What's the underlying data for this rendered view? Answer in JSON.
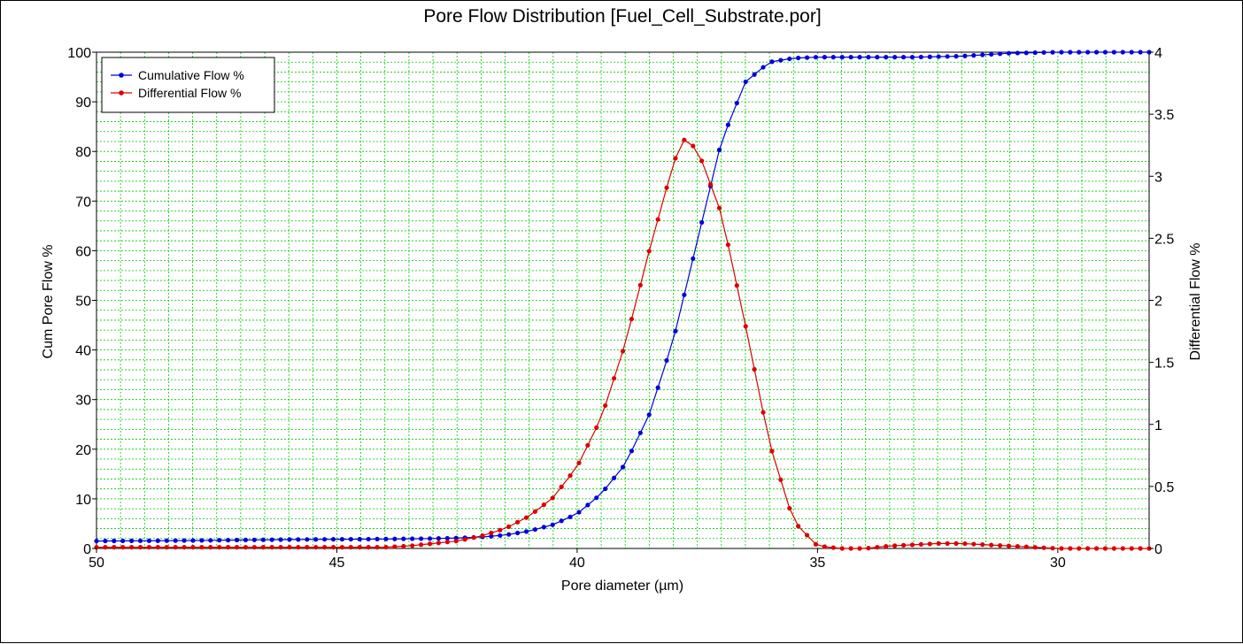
{
  "chart_data": {
    "type": "line",
    "title": "Pore Flow Distribution [Fuel_Cell_Substrate.por]",
    "xlabel": "Pore diameter (µm)",
    "ylabel_left": "Cum Pore Flow %",
    "ylabel_right": "Differential Flow %",
    "xlim": [
      50,
      28.1
    ],
    "x_reversed": true,
    "x_ticks": [
      50,
      45,
      40,
      35,
      30
    ],
    "ylim_left": [
      0,
      100
    ],
    "y_ticks_left": [
      0,
      10,
      20,
      30,
      40,
      50,
      60,
      70,
      80,
      90,
      100
    ],
    "ylim_right": [
      0,
      4
    ],
    "y_ticks_right": [
      0,
      0.5,
      1,
      1.5,
      2,
      2.5,
      3,
      3.5,
      4
    ],
    "grid": true,
    "legend_position": "top-left",
    "colors": {
      "grid": "#00cc00",
      "cumulative": "#0000dd",
      "differential": "#dd0000"
    },
    "series": [
      {
        "name": "Cumulative Flow %",
        "axis": "left",
        "x": [
          50,
          48,
          46,
          44,
          43,
          42.5,
          42,
          41.5,
          41,
          40.5,
          40,
          39.5,
          39,
          38.5,
          38,
          37.5,
          37,
          36.5,
          36,
          35.5,
          35,
          34,
          33,
          32,
          31,
          30,
          29,
          28.1
        ],
        "values": [
          1.5,
          1.6,
          1.8,
          1.9,
          2.0,
          2.1,
          2.3,
          2.7,
          3.5,
          4.8,
          7.0,
          11.0,
          17.0,
          27.0,
          42.0,
          62.0,
          82.0,
          94.0,
          98.0,
          98.8,
          99.0,
          99.0,
          99.0,
          99.2,
          99.8,
          100,
          100,
          100
        ]
      },
      {
        "name": "Differential Flow %",
        "axis": "right",
        "x": [
          50,
          48,
          46,
          44,
          43.5,
          43,
          42.5,
          42,
          41.5,
          41,
          40.5,
          40,
          39.5,
          39,
          38.5,
          38,
          37.8,
          37.5,
          37,
          36.5,
          36,
          35.5,
          35,
          34.5,
          34,
          33.5,
          33,
          32.5,
          32,
          31.5,
          31,
          30,
          29,
          28.1
        ],
        "values": [
          0.01,
          0.01,
          0.01,
          0.01,
          0.02,
          0.04,
          0.06,
          0.1,
          0.16,
          0.26,
          0.41,
          0.66,
          1.05,
          1.65,
          2.4,
          3.1,
          3.3,
          3.22,
          2.7,
          1.8,
          0.85,
          0.22,
          0.02,
          0.0,
          0.0,
          0.02,
          0.03,
          0.04,
          0.04,
          0.03,
          0.02,
          0.0,
          0.0,
          0.0
        ]
      }
    ]
  }
}
